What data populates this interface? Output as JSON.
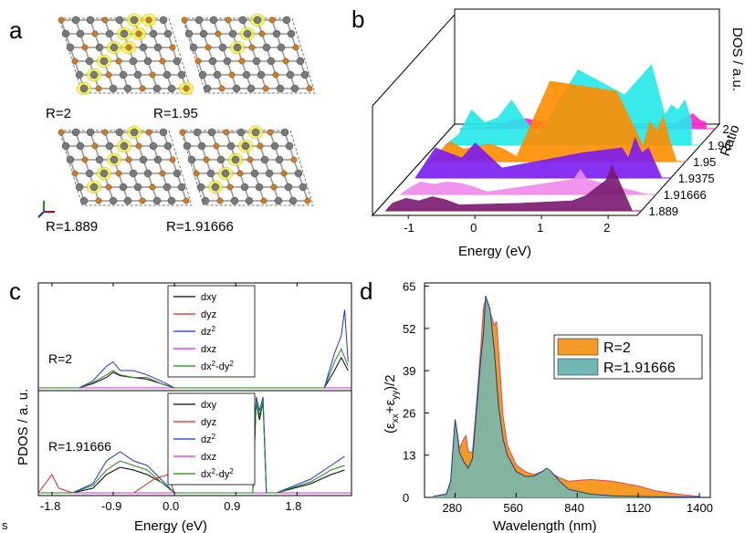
{
  "panels": {
    "a": {
      "label": "a",
      "structures": [
        {
          "ratio_label": "R=2"
        },
        {
          "ratio_label": "R=1.95"
        },
        {
          "ratio_label": "R=1.889"
        },
        {
          "ratio_label": "R=1.91666"
        }
      ]
    },
    "b": {
      "label": "b"
    },
    "c": {
      "label": "c"
    },
    "d": {
      "label": "d"
    },
    "stray": "s"
  },
  "colors": {
    "atom_grey": "#7a7a7a",
    "atom_orange": "#d77a1e",
    "isosurface_yellow": "#f2ef3c",
    "dxy": "#000000",
    "dyz": "#e02020",
    "dz2": "#1f2fd8",
    "dxz": "#e020e0",
    "dx2y2": "#1b8a1b",
    "d_R2": "#f59a24",
    "d_R191666": "#6fb8b5"
  },
  "chart_data": [
    {
      "panel": "b",
      "type": "area",
      "xlabel": "Energy (eV)",
      "ylabel": "DOS / a.u.",
      "zlabel": "Ratio",
      "x_ticks": [
        "-1",
        "0",
        "1",
        "2"
      ],
      "xlim": [
        -1.4,
        2.3
      ],
      "ratio_ticks": [
        "2",
        "1.96",
        "1.95",
        "1.9375",
        "1.91666",
        "1.889"
      ],
      "series": [
        {
          "ratio": "2",
          "color": "#ff22cc",
          "x": [
            -0.8,
            -0.6,
            -0.4,
            -0.2,
            0.0,
            1.8,
            1.9,
            2.0,
            2.1,
            2.2,
            2.3
          ],
          "y": [
            0.05,
            0.18,
            0.2,
            0.15,
            0.06,
            0.05,
            0.16,
            0.22,
            0.3,
            0.18,
            0.12
          ]
        },
        {
          "ratio": "1.96",
          "color": "#22e8e8",
          "x": [
            -1.2,
            -1.0,
            -0.8,
            -0.6,
            -0.4,
            -0.2,
            0.0,
            0.6,
            1.3,
            1.7,
            1.9,
            2.0,
            2.1,
            2.2,
            2.3
          ],
          "y": [
            0.2,
            0.7,
            0.45,
            0.55,
            0.9,
            0.5,
            0.2,
            1.5,
            1.0,
            1.6,
            0.6,
            0.8,
            0.7,
            0.9,
            0.5
          ]
        },
        {
          "ratio": "1.95",
          "color": "#ff8c00",
          "x": [
            -1.3,
            -1.1,
            -0.9,
            -0.7,
            -0.5,
            -0.3,
            -0.1,
            0.4,
            1.4,
            1.8,
            1.9,
            2.0,
            2.1,
            2.2
          ],
          "y": [
            0.15,
            0.4,
            0.25,
            0.3,
            0.35,
            0.25,
            0.1,
            1.6,
            1.4,
            0.3,
            0.8,
            0.6,
            0.9,
            0.4
          ]
        },
        {
          "ratio": "1.9375",
          "color": "#7a1cf0",
          "x": [
            -1.3,
            -1.1,
            -0.9,
            -0.7,
            -0.5,
            -0.3,
            -0.1,
            1.1,
            1.7,
            1.8,
            1.9,
            2.0,
            2.1
          ],
          "y": [
            0.2,
            0.6,
            0.5,
            0.4,
            0.7,
            0.45,
            0.2,
            0.5,
            0.6,
            0.4,
            0.8,
            0.5,
            0.6
          ]
        },
        {
          "ratio": "1.91666",
          "color": "#ee88ee",
          "x": [
            -1.3,
            -1.1,
            -0.9,
            -0.7,
            -0.5,
            -0.3,
            -0.1,
            1.2,
            1.3,
            1.4
          ],
          "y": [
            0.1,
            0.25,
            0.2,
            0.25,
            0.22,
            0.15,
            0.05,
            0.3,
            0.5,
            0.3
          ]
        },
        {
          "ratio": "1.889",
          "color": "#7a1870",
          "x": [
            -1.3,
            -1.1,
            -0.9,
            -0.7,
            -0.5,
            -0.3,
            0.6,
            1.4,
            1.6,
            1.8,
            1.9,
            2.0
          ],
          "y": [
            0.15,
            0.25,
            0.2,
            0.28,
            0.22,
            0.12,
            0.15,
            0.2,
            0.3,
            0.5,
            0.6,
            0.9
          ]
        }
      ]
    },
    {
      "panel": "c",
      "type": "line",
      "xlabel": "Energy (eV)",
      "ylabel": "PDOS / a. u.",
      "x_ticks": [
        "-1.8",
        "-0.9",
        "0.0",
        "0.9",
        "1.8"
      ],
      "xlim": [
        -2.0,
        2.6
      ],
      "legend_entries": [
        "dxy",
        "dyz",
        "dz2",
        "dxz",
        "dx2-dy2"
      ],
      "legend_placement": "top-right of each subplot",
      "subplots": [
        {
          "label": "R=2",
          "series": [
            {
              "name": "dxy",
              "x": [
                -2.0,
                -1.4,
                -1.2,
                -1.0,
                -0.9,
                -0.8,
                -0.6,
                -0.4,
                -0.2,
                0.0,
                2.2,
                2.35,
                2.45,
                2.55
              ],
              "y": [
                0.0,
                0.0,
                0.05,
                0.12,
                0.18,
                0.14,
                0.12,
                0.1,
                0.05,
                0.0,
                0.0,
                0.2,
                0.35,
                0.2
              ]
            },
            {
              "name": "dyz",
              "x": [
                -2.0,
                0.0,
                2.6
              ],
              "y": [
                0.0,
                0.0,
                0.0
              ]
            },
            {
              "name": "dz2",
              "x": [
                -2.0,
                -1.4,
                -1.2,
                -1.0,
                -0.9,
                -0.8,
                -0.6,
                -0.4,
                -0.2,
                0.0,
                2.2,
                2.35,
                2.45,
                2.5,
                2.55
              ],
              "y": [
                0.0,
                0.0,
                0.08,
                0.25,
                0.3,
                0.2,
                0.2,
                0.15,
                0.08,
                0.0,
                0.0,
                0.4,
                0.6,
                0.9,
                0.3
              ]
            },
            {
              "name": "dxz",
              "x": [
                -2.0,
                0.0,
                2.6
              ],
              "y": [
                0.0,
                0.0,
                0.0
              ]
            },
            {
              "name": "dx2-dy2",
              "x": [
                -2.0,
                -1.4,
                -1.2,
                -1.0,
                -0.9,
                -0.8,
                -0.6,
                -0.4,
                -0.2,
                0.0,
                2.2,
                2.35,
                2.45,
                2.55
              ],
              "y": [
                0.0,
                0.0,
                0.06,
                0.15,
                0.2,
                0.15,
                0.12,
                0.12,
                0.05,
                0.0,
                0.0,
                0.3,
                0.45,
                0.25
              ]
            }
          ]
        },
        {
          "label": "R=1.91666",
          "series": [
            {
              "name": "dxy",
              "x": [
                -2.0,
                -1.5,
                -1.2,
                -1.0,
                -0.8,
                -0.6,
                -0.4,
                -0.2,
                0.0,
                1.15,
                1.2,
                1.25,
                1.3,
                1.35,
                1.5,
                2.0,
                2.3,
                2.5
              ],
              "y": [
                0.0,
                0.0,
                0.05,
                0.2,
                0.28,
                0.25,
                0.2,
                0.12,
                0.0,
                0.0,
                1.0,
                0.8,
                1.0,
                0.0,
                0.0,
                0.1,
                0.2,
                0.25
              ]
            },
            {
              "name": "dyz",
              "x": [
                -2.0,
                -1.9,
                -1.8,
                -1.7,
                -1.5,
                -0.6,
                -0.3,
                -0.1,
                0.0,
                2.6
              ],
              "y": [
                0.0,
                0.1,
                0.2,
                0.05,
                0.0,
                0.0,
                0.15,
                0.2,
                0.0,
                0.0
              ]
            },
            {
              "name": "dz2",
              "x": [
                -2.0,
                -1.5,
                -1.2,
                -1.0,
                -0.8,
                -0.6,
                -0.4,
                -0.2,
                0.0,
                1.15,
                1.2,
                1.25,
                1.3,
                1.35,
                1.5,
                2.0,
                2.3,
                2.5
              ],
              "y": [
                0.0,
                0.0,
                0.1,
                0.35,
                0.45,
                0.35,
                0.3,
                0.15,
                0.0,
                0.0,
                1.05,
                0.9,
                1.05,
                0.0,
                0.0,
                0.15,
                0.3,
                0.4
              ]
            },
            {
              "name": "dxz",
              "x": [
                -2.0,
                0.0,
                2.6
              ],
              "y": [
                0.0,
                0.0,
                0.0
              ]
            },
            {
              "name": "dx2-dy2",
              "x": [
                -2.0,
                -1.5,
                -1.2,
                -1.0,
                -0.8,
                -0.6,
                -0.4,
                -0.2,
                0.0,
                1.15,
                1.2,
                1.25,
                1.3,
                1.35,
                1.5,
                2.0,
                2.3,
                2.5
              ],
              "y": [
                0.0,
                0.0,
                0.08,
                0.25,
                0.35,
                0.3,
                0.25,
                0.12,
                0.0,
                0.0,
                1.0,
                0.85,
                1.0,
                0.0,
                0.0,
                0.12,
                0.25,
                0.3
              ]
            }
          ]
        }
      ]
    },
    {
      "panel": "d",
      "type": "area",
      "xlabel": "Wavelength (nm)",
      "ylabel": "(ε_xx+ε_yy)/2",
      "x_ticks": [
        280,
        560,
        840,
        1120,
        1400
      ],
      "y_ticks": [
        0,
        13,
        26,
        39,
        52,
        65
      ],
      "xlim": [
        140,
        1450
      ],
      "ylim": [
        0,
        66
      ],
      "legend_placement": "top-right",
      "series": [
        {
          "name": "R=2",
          "color": "#f59a24",
          "x": [
            180,
            240,
            260,
            270,
            280,
            290,
            300,
            320,
            330,
            340,
            360,
            380,
            400,
            410,
            420,
            440,
            460,
            470,
            480,
            500,
            520,
            560,
            600,
            640,
            680,
            700,
            720,
            760,
            800,
            900,
            1000,
            1120,
            1200,
            1300,
            1400
          ],
          "y": [
            0.3,
            1,
            5,
            14,
            23,
            20,
            15,
            18,
            19,
            14,
            14,
            30,
            48,
            58,
            61,
            57,
            53,
            54,
            45,
            25,
            16,
            10,
            8,
            7,
            8,
            8,
            7.5,
            6,
            5,
            5.5,
            5,
            3.5,
            2,
            1,
            0.3
          ]
        },
        {
          "name": "R=1.91666",
          "color": "#6fb8b5",
          "x": [
            180,
            240,
            260,
            270,
            280,
            290,
            300,
            320,
            340,
            360,
            380,
            400,
            410,
            420,
            440,
            460,
            480,
            500,
            520,
            560,
            600,
            640,
            680,
            700,
            720,
            760,
            800,
            900,
            1000,
            1200,
            1400
          ],
          "y": [
            0.3,
            1,
            5,
            15,
            24,
            20,
            14,
            11,
            9,
            12,
            28,
            44,
            50,
            62,
            58,
            45,
            28,
            18,
            13,
            8,
            6.5,
            6.5,
            8,
            9,
            8,
            5,
            2.5,
            1,
            0.5,
            0.2,
            0.1
          ]
        }
      ]
    }
  ]
}
